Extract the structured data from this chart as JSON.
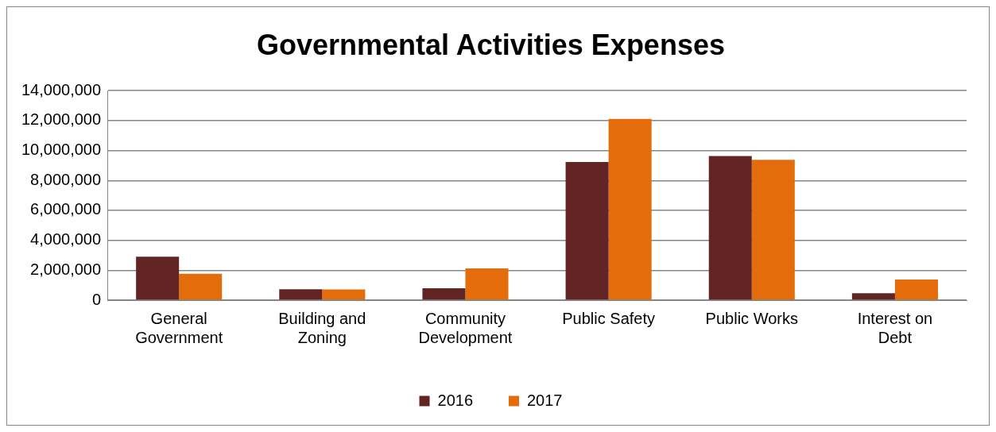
{
  "chart_data": {
    "type": "bar",
    "title": "Governmental Activities Expenses",
    "categories": [
      "General Government",
      "Building and Zoning",
      "Community Development",
      "Public Safety",
      "Public Works",
      "Interest on Debt"
    ],
    "series": [
      {
        "name": "2016",
        "color": "#632523",
        "values": [
          2900000,
          730000,
          800000,
          9230000,
          9630000,
          460000
        ]
      },
      {
        "name": "2017",
        "color": "#e46c0a",
        "values": [
          1760000,
          710000,
          2120000,
          12110000,
          9380000,
          1380000
        ]
      }
    ],
    "ylim": [
      0,
      14000000
    ],
    "yticks": [
      0,
      {
        "value": 2000000,
        "label": "2,000,000"
      },
      {
        "value": 4000000,
        "label": "4,000,000"
      },
      {
        "value": 6000000,
        "label": "6,000,000"
      },
      {
        "value": 8000000,
        "label": "8,000,000"
      },
      {
        "value": 10000000,
        "label": "10,000,000"
      },
      {
        "value": 12000000,
        "label": "12,000,000"
      },
      {
        "value": 14000000,
        "label": "14,000,000"
      }
    ],
    "grid": "y",
    "legend": "bottom"
  }
}
